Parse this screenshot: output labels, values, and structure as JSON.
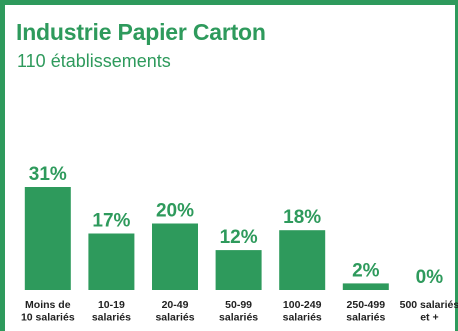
{
  "header": {
    "title": "Industrie Papier Carton",
    "subtitle": "110 établissements"
  },
  "colors": {
    "accent": "#2e9a5c",
    "bar": "#2e9a5c",
    "category_text": "#222222"
  },
  "chart_data": {
    "type": "bar",
    "title": "Industrie Papier Carton",
    "subtitle": "110 établissements",
    "categories": [
      [
        "Moins de",
        "10 salariés"
      ],
      [
        "10-19",
        "salariés"
      ],
      [
        "20-49",
        "salariés"
      ],
      [
        "50-99",
        "salariés"
      ],
      [
        "100-249",
        "salariés"
      ],
      [
        "250-499",
        "salariés"
      ],
      [
        "500 salariés",
        "et +"
      ]
    ],
    "values": [
      31,
      17,
      20,
      12,
      18,
      2,
      0
    ],
    "value_labels": [
      "31%",
      "17%",
      "20%",
      "12%",
      "18%",
      "2%",
      "0%"
    ],
    "unit": "%",
    "ylim": [
      0,
      31
    ],
    "grid": false,
    "legend": "none"
  }
}
